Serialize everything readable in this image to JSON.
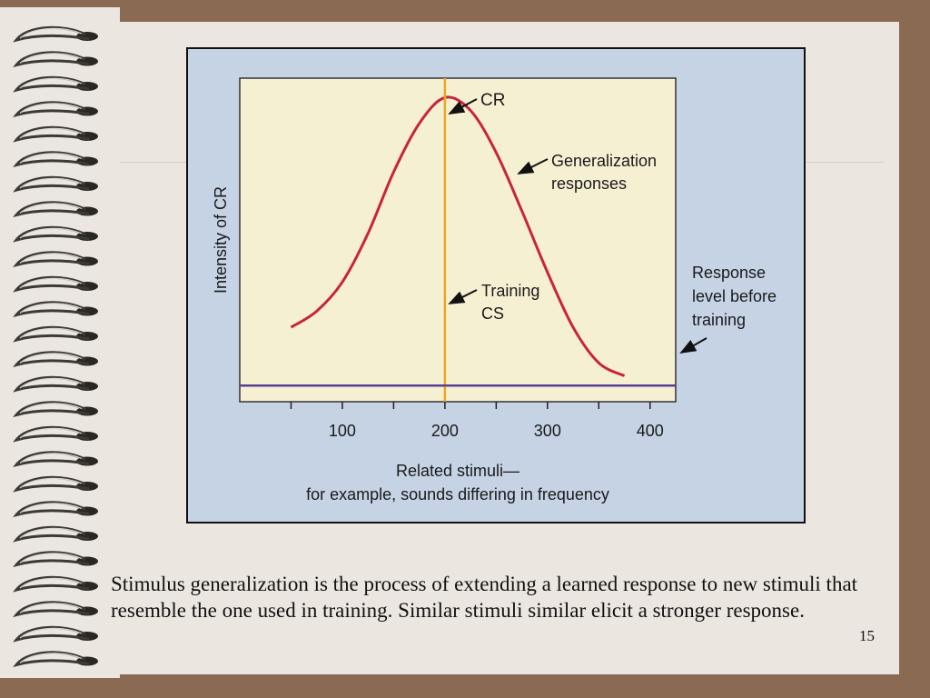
{
  "colors": {
    "background": "#8b6a54",
    "slide": "#ece6e0",
    "figure_background": "#c5d3e4",
    "plot_background": "#f6f0d3",
    "curve": "#c8243b",
    "training_line": "#e6a920",
    "baseline": "#5a3e96"
  },
  "chart_data": {
    "type": "line",
    "title": "",
    "ylabel": "Intensity of CR",
    "xlabel_lines": [
      "Related stimuli—",
      "for example, sounds differing in frequency"
    ],
    "xlim": [
      0,
      425
    ],
    "ylim": [
      0,
      1
    ],
    "x_ticks": [
      100,
      200,
      300,
      400
    ],
    "x_tick_labels": [
      "100",
      "200",
      "300",
      "400"
    ],
    "grid": false,
    "series": [
      {
        "name": "Generalization responses",
        "x": [
          50,
          75,
          100,
          125,
          150,
          175,
          200,
          225,
          250,
          275,
          300,
          325,
          350,
          375
        ],
        "y": [
          0.23,
          0.28,
          0.37,
          0.52,
          0.71,
          0.86,
          0.94,
          0.9,
          0.77,
          0.59,
          0.4,
          0.23,
          0.12,
          0.08
        ]
      }
    ],
    "reference_lines": [
      {
        "kind": "vertical",
        "x": 200,
        "label": "Training CS"
      },
      {
        "kind": "horizontal",
        "y": 0.05,
        "label": "Response level before training"
      }
    ],
    "annotations": [
      {
        "text_lines": [
          "CR"
        ],
        "x": 200,
        "y": 0.94
      },
      {
        "text_lines": [
          "Generalization",
          "responses"
        ],
        "x": 275,
        "y": 0.74
      },
      {
        "text_lines": [
          "Training",
          "CS"
        ],
        "x": 200,
        "y": 0.32
      },
      {
        "text_lines": [
          "Response",
          "level before",
          "training"
        ],
        "x": 425,
        "y": 0.05
      }
    ]
  },
  "caption": "Stimulus generalization is the process of extending a learned response to new stimuli that resemble the one used in training. Similar stimuli similar elicit a stronger response.",
  "page_number": "15"
}
